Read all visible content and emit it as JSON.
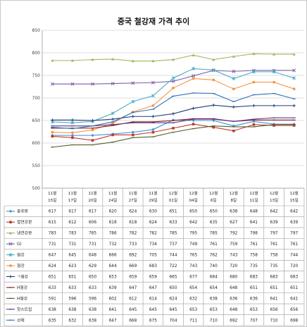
{
  "chart_data": {
    "type": "line",
    "title": "중국 철강재 가격 추이",
    "ylim": [
      500,
      850
    ],
    "yticks": [
      500,
      550,
      600,
      650,
      700,
      750,
      800,
      850
    ],
    "grid": true,
    "legend": "bottom-table",
    "categories": [
      [
        "11월",
        "15일"
      ],
      [
        "11월",
        "17일"
      ],
      [
        "11월",
        "20일"
      ],
      [
        "11월",
        "24일"
      ],
      [
        "11월",
        "27일"
      ],
      [
        "11월",
        "29일"
      ],
      [
        "12월",
        "01일"
      ],
      [
        "12월",
        "04일"
      ],
      [
        "12월",
        "6일"
      ],
      [
        "12월",
        "8일"
      ],
      [
        "12월",
        "11일"
      ],
      [
        "12월",
        "13일"
      ],
      [
        "12월",
        "15일"
      ]
    ],
    "series": [
      {
        "name": "중후판",
        "color": "#3a8fd8",
        "marker": "diamond",
        "values": [
          617,
          617,
          617,
          620,
          624,
          630,
          651,
          650,
          650,
          638,
          648,
          642,
          642
        ]
      },
      {
        "name": "열연강판",
        "color": "#c0392b",
        "marker": "square",
        "values": [
          615,
          612,
          606,
          618,
          618,
          624,
          633,
          642,
          635,
          627,
          641,
          639,
          639
        ]
      },
      {
        "name": "냉연강판",
        "color": "#9bbb59",
        "marker": "triangle",
        "values": [
          783,
          783,
          785,
          786,
          782,
          782,
          785,
          795,
          785,
          792,
          798,
          797,
          797
        ]
      },
      {
        "name": "GI",
        "color": "#7b5ea7",
        "marker": "x",
        "values": [
          731,
          731,
          731,
          732,
          733,
          734,
          737,
          749,
          761,
          759,
          761,
          761,
          761
        ]
      },
      {
        "name": "형강",
        "color": "#4bacc6",
        "marker": "star",
        "values": [
          647,
          645,
          648,
          666,
          692,
          705,
          744,
          765,
          762,
          743,
          758,
          758,
          744
        ]
      },
      {
        "name": "형강",
        "color": "#f79646",
        "marker": "circle",
        "values": [
          624,
          623,
          629,
          644,
          669,
          683,
          722,
          743,
          740,
          720,
          735,
          735,
          720
        ]
      },
      {
        "name": "ㄱ형강",
        "color": "#1f3d7a",
        "marker": "plus",
        "values": [
          651,
          651,
          650,
          653,
          659,
          659,
          665,
          677,
          684,
          680,
          683,
          683,
          683
        ]
      },
      {
        "name": "H형강",
        "color": "#8b1a1a",
        "marker": "dash",
        "values": [
          633,
          633,
          633,
          639,
          647,
          647,
          650,
          654,
          654,
          648,
          651,
          651,
          651
        ]
      },
      {
        "name": "H형강",
        "color": "#4f6228",
        "marker": "dash",
        "values": [
          591,
          596,
          596,
          602,
          612,
          614,
          624,
          632,
          638,
          636,
          636,
          641,
          641
        ]
      },
      {
        "name": "핫스트립",
        "color": "#5b3b8c",
        "marker": "dash",
        "values": [
          638,
          638,
          638,
          641,
          645,
          645,
          645,
          653,
          653,
          648,
          653,
          656,
          656
        ]
      },
      {
        "name": "선재",
        "color": "#2e75b6",
        "marker": "dash",
        "values": [
          635,
          632,
          638,
          647,
          668,
          675,
          704,
          711,
          710,
          692,
          707,
          710,
          698
        ]
      }
    ]
  }
}
